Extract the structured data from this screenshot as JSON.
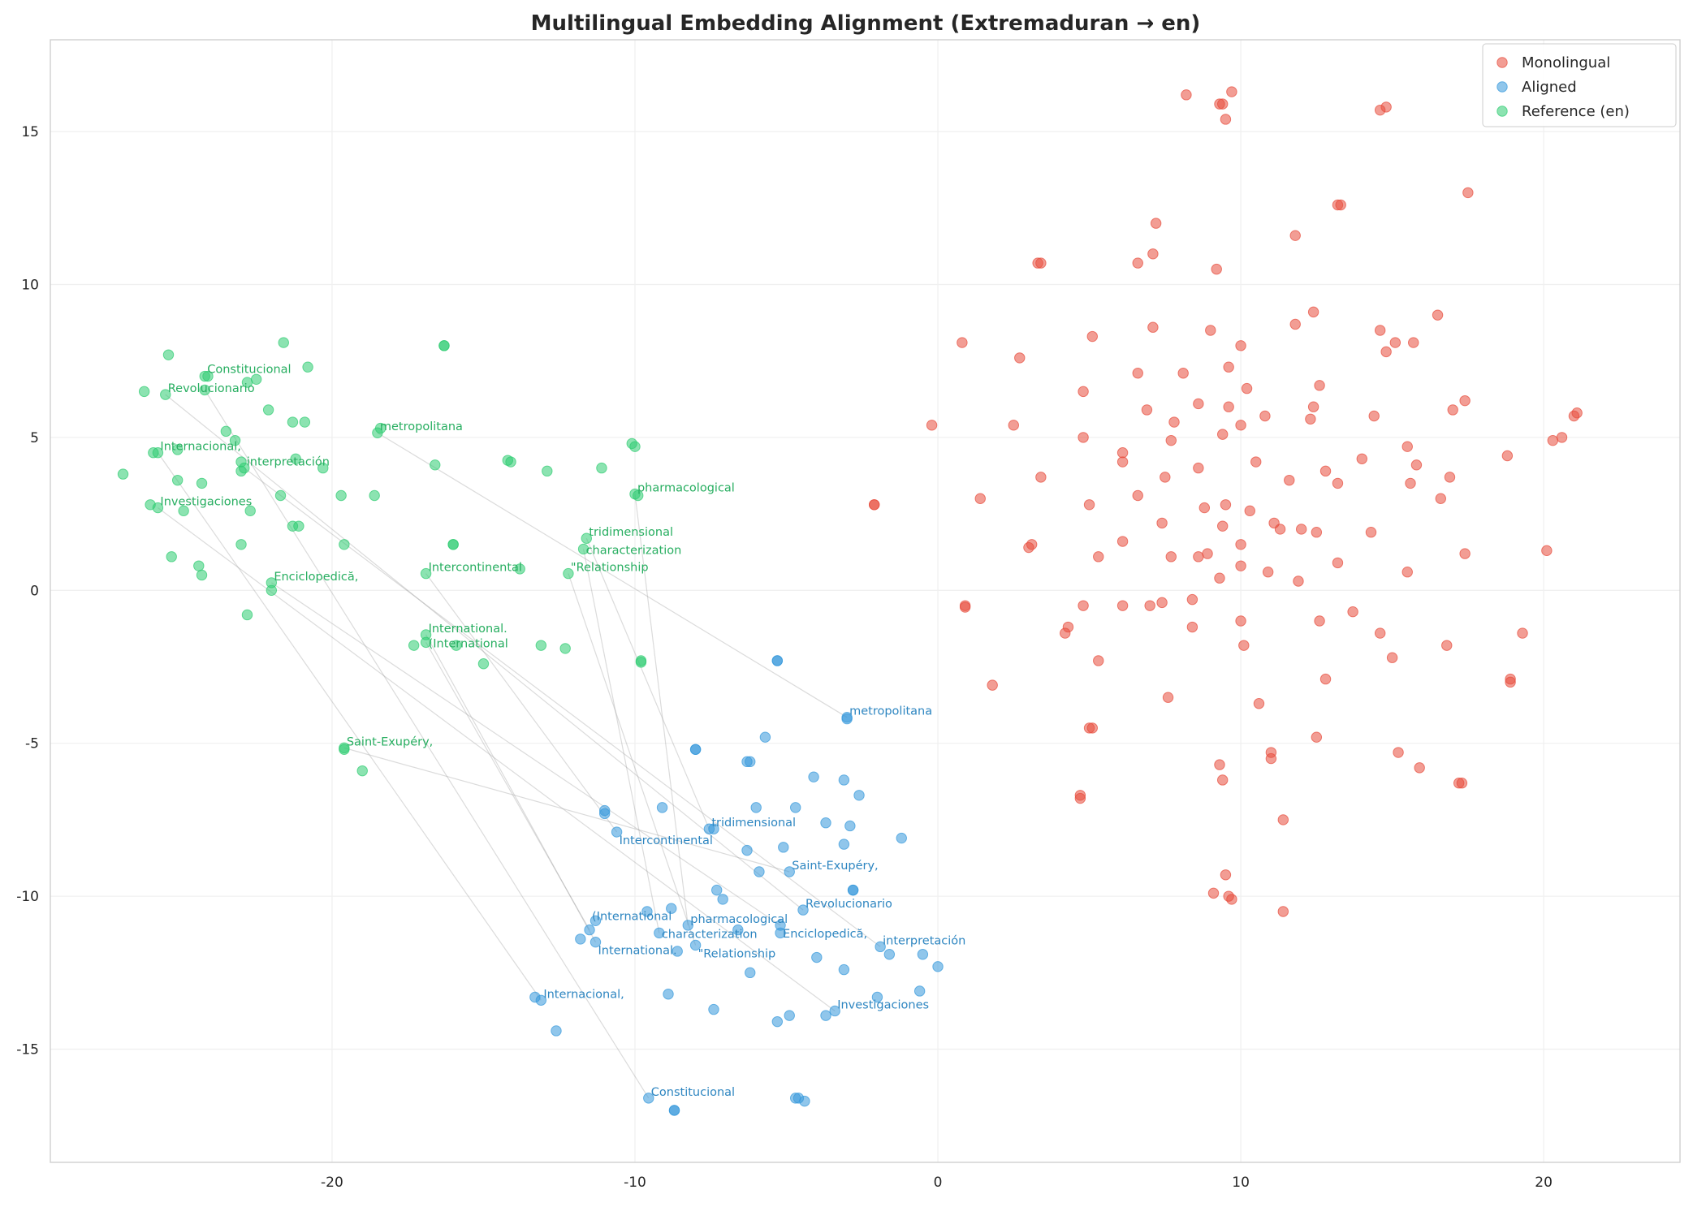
{
  "chart_data": {
    "type": "scatter",
    "title": "Multilingual Embedding Alignment (Extremaduran → en)",
    "xlabel": "",
    "ylabel": "",
    "xlim": [
      -29.3,
      24.5
    ],
    "ylim": [
      -18.7,
      18.0
    ],
    "xticks": [
      -20,
      -10,
      0,
      10,
      20
    ],
    "xtick_labels": [
      "-20",
      "-10",
      "0",
      "10",
      "20"
    ],
    "yticks": [
      15,
      10,
      5,
      0,
      -5,
      -10,
      -15
    ],
    "ytick_labels": [
      "15",
      "10",
      "5",
      "0",
      "-5",
      "-10",
      "-15"
    ],
    "grid": true,
    "legend_position": "top-right",
    "series": [
      {
        "name": "Monolingual",
        "color": "#e74c3c",
        "points": [
          [
            8.2,
            16.2
          ],
          [
            9.3,
            15.9
          ],
          [
            9.7,
            16.3
          ],
          [
            9.4,
            15.9
          ],
          [
            9.5,
            15.4
          ],
          [
            14.6,
            15.7
          ],
          [
            14.8,
            15.8
          ],
          [
            17.5,
            13.0
          ],
          [
            13.2,
            12.6
          ],
          [
            13.3,
            12.6
          ],
          [
            7.2,
            12.0
          ],
          [
            11.8,
            11.6
          ],
          [
            3.3,
            10.7
          ],
          [
            3.4,
            10.7
          ],
          [
            6.6,
            10.7
          ],
          [
            7.1,
            11.0
          ],
          [
            9.2,
            10.5
          ],
          [
            16.5,
            9.0
          ],
          [
            12.4,
            9.1
          ],
          [
            11.8,
            8.7
          ],
          [
            7.1,
            8.6
          ],
          [
            9.0,
            8.5
          ],
          [
            5.1,
            8.3
          ],
          [
            10.0,
            8.0
          ],
          [
            14.6,
            8.5
          ],
          [
            14.8,
            7.8
          ],
          [
            15.1,
            8.1
          ],
          [
            15.7,
            8.1
          ],
          [
            0.8,
            8.1
          ],
          [
            2.7,
            7.6
          ],
          [
            6.6,
            7.1
          ],
          [
            8.1,
            7.1
          ],
          [
            9.6,
            7.3
          ],
          [
            12.6,
            6.7
          ],
          [
            10.2,
            6.6
          ],
          [
            4.8,
            6.5
          ],
          [
            8.6,
            6.1
          ],
          [
            9.6,
            6.0
          ],
          [
            6.9,
            5.9
          ],
          [
            10.8,
            5.7
          ],
          [
            12.4,
            6.0
          ],
          [
            12.3,
            5.6
          ],
          [
            14.4,
            5.7
          ],
          [
            17.0,
            5.9
          ],
          [
            17.4,
            6.2
          ],
          [
            21.1,
            5.8
          ],
          [
            21.0,
            5.7
          ],
          [
            7.8,
            5.5
          ],
          [
            10.0,
            5.4
          ],
          [
            -0.2,
            5.4
          ],
          [
            2.5,
            5.4
          ],
          [
            4.8,
            5.0
          ],
          [
            7.7,
            4.9
          ],
          [
            9.4,
            5.1
          ],
          [
            15.5,
            4.7
          ],
          [
            20.3,
            4.9
          ],
          [
            20.6,
            5.0
          ],
          [
            15.8,
            4.1
          ],
          [
            18.8,
            4.4
          ],
          [
            10.5,
            4.2
          ],
          [
            14.0,
            4.3
          ],
          [
            12.8,
            3.9
          ],
          [
            8.6,
            4.0
          ],
          [
            7.5,
            3.7
          ],
          [
            6.1,
            4.5
          ],
          [
            6.1,
            4.2
          ],
          [
            3.4,
            3.7
          ],
          [
            11.6,
            3.6
          ],
          [
            13.2,
            3.5
          ],
          [
            16.9,
            3.7
          ],
          [
            15.6,
            3.5
          ],
          [
            16.6,
            3.0
          ],
          [
            6.6,
            3.1
          ],
          [
            1.4,
            3.0
          ],
          [
            8.8,
            2.7
          ],
          [
            10.3,
            2.6
          ],
          [
            5.0,
            2.8
          ],
          [
            9.5,
            2.8
          ],
          [
            7.4,
            2.2
          ],
          [
            11.1,
            2.2
          ],
          [
            11.3,
            2.0
          ],
          [
            12.5,
            1.9
          ],
          [
            12.0,
            2.0
          ],
          [
            9.4,
            2.1
          ],
          [
            14.3,
            1.9
          ],
          [
            6.1,
            1.6
          ],
          [
            3.0,
            1.4
          ],
          [
            3.1,
            1.5
          ],
          [
            10.0,
            1.5
          ],
          [
            13.2,
            0.9
          ],
          [
            17.4,
            1.2
          ],
          [
            20.1,
            1.3
          ],
          [
            5.3,
            1.1
          ],
          [
            8.6,
            1.1
          ],
          [
            7.7,
            1.1
          ],
          [
            8.9,
            1.2
          ],
          [
            10.0,
            0.8
          ],
          [
            15.5,
            0.6
          ],
          [
            10.9,
            0.6
          ],
          [
            11.9,
            0.3
          ],
          [
            9.3,
            0.4
          ],
          [
            4.8,
            -0.5
          ],
          [
            6.1,
            -0.5
          ],
          [
            7.4,
            -0.4
          ],
          [
            8.4,
            -0.3
          ],
          [
            7.0,
            -0.5
          ],
          [
            0.9,
            -0.5
          ],
          [
            0.9,
            -0.55
          ],
          [
            10.0,
            -1.0
          ],
          [
            13.7,
            -0.7
          ],
          [
            12.6,
            -1.0
          ],
          [
            4.3,
            -1.2
          ],
          [
            4.2,
            -1.4
          ],
          [
            8.4,
            -1.2
          ],
          [
            14.6,
            -1.4
          ],
          [
            19.3,
            -1.4
          ],
          [
            10.1,
            -1.8
          ],
          [
            16.8,
            -1.8
          ],
          [
            15.0,
            -2.2
          ],
          [
            5.3,
            -2.3
          ],
          [
            12.8,
            -2.9
          ],
          [
            1.8,
            -3.1
          ],
          [
            18.9,
            -2.9
          ],
          [
            18.9,
            -3.0
          ],
          [
            7.6,
            -3.5
          ],
          [
            10.6,
            -3.7
          ],
          [
            5.1,
            -4.5
          ],
          [
            5.0,
            -4.5
          ],
          [
            12.5,
            -4.8
          ],
          [
            15.2,
            -5.3
          ],
          [
            15.9,
            -5.8
          ],
          [
            9.3,
            -5.7
          ],
          [
            11.0,
            -5.5
          ],
          [
            11.0,
            -5.3
          ],
          [
            9.4,
            -6.2
          ],
          [
            17.2,
            -6.3
          ],
          [
            17.3,
            -6.3
          ],
          [
            4.7,
            -6.7
          ],
          [
            4.7,
            -6.8
          ],
          [
            11.4,
            -7.5
          ],
          [
            9.5,
            -9.3
          ],
          [
            9.1,
            -9.9
          ],
          [
            9.6,
            -10.0
          ],
          [
            9.7,
            -10.1
          ],
          [
            11.4,
            -10.5
          ],
          [
            -2.1,
            2.8
          ],
          [
            -2.1,
            2.8
          ]
        ]
      },
      {
        "name": "Aligned",
        "color": "#3498db",
        "points": [
          [
            -5.3,
            -2.3
          ],
          [
            -5.3,
            -2.3
          ],
          [
            -8.0,
            -5.2
          ],
          [
            -8.0,
            -5.2
          ],
          [
            -5.7,
            -4.8
          ],
          [
            -6.2,
            -5.6
          ],
          [
            -6.3,
            -5.6
          ],
          [
            -4.1,
            -6.1
          ],
          [
            -3.1,
            -6.2
          ],
          [
            -2.6,
            -6.7
          ],
          [
            -11.0,
            -7.2
          ],
          [
            -11.0,
            -7.3
          ],
          [
            -9.1,
            -7.1
          ],
          [
            -6.0,
            -7.1
          ],
          [
            -4.7,
            -7.1
          ],
          [
            -3.7,
            -7.6
          ],
          [
            -2.9,
            -7.7
          ],
          [
            -7.4,
            -7.8
          ],
          [
            -5.1,
            -8.4
          ],
          [
            -3.1,
            -8.3
          ],
          [
            -1.2,
            -8.1
          ],
          [
            -6.3,
            -8.5
          ],
          [
            -5.9,
            -9.2
          ],
          [
            -2.8,
            -9.8
          ],
          [
            -2.8,
            -9.8
          ],
          [
            -7.3,
            -9.8
          ],
          [
            -7.1,
            -10.1
          ],
          [
            -9.6,
            -10.5
          ],
          [
            -8.8,
            -10.4
          ],
          [
            -6.6,
            -11.1
          ],
          [
            -5.2,
            -11.2
          ],
          [
            -11.8,
            -11.4
          ],
          [
            -8.6,
            -11.8
          ],
          [
            -6.2,
            -12.5
          ],
          [
            -4.0,
            -12.0
          ],
          [
            -3.1,
            -12.4
          ],
          [
            -0.5,
            -11.9
          ],
          [
            0.0,
            -12.3
          ],
          [
            -1.6,
            -11.9
          ],
          [
            -0.6,
            -13.1
          ],
          [
            -2.0,
            -13.3
          ],
          [
            -5.3,
            -14.1
          ],
          [
            -4.9,
            -13.9
          ],
          [
            -3.7,
            -13.9
          ],
          [
            -13.3,
            -13.3
          ],
          [
            -12.6,
            -14.4
          ],
          [
            -8.9,
            -13.2
          ],
          [
            -7.4,
            -13.7
          ],
          [
            -8.7,
            -17.0
          ],
          [
            -8.7,
            -17.0
          ],
          [
            -4.6,
            -16.6
          ],
          [
            -4.4,
            -16.7
          ],
          [
            -4.7,
            -16.6
          ],
          [
            -3.0,
            -4.2
          ],
          [
            -11.3,
            -10.8
          ]
        ]
      },
      {
        "name": "Reference (en)",
        "color": "#2ecc71",
        "points": [
          [
            -25.4,
            7.7
          ],
          [
            -21.6,
            8.1
          ],
          [
            -20.8,
            7.3
          ],
          [
            -24.1,
            7.0
          ],
          [
            -22.5,
            6.9
          ],
          [
            -24.2,
            7.0
          ],
          [
            -22.8,
            6.8
          ],
          [
            -26.2,
            6.5
          ],
          [
            -22.1,
            5.9
          ],
          [
            -23.5,
            5.2
          ],
          [
            -23.2,
            4.9
          ],
          [
            -21.3,
            5.5
          ],
          [
            -20.9,
            5.5
          ],
          [
            -25.1,
            4.6
          ],
          [
            -21.2,
            4.3
          ],
          [
            -26.9,
            3.8
          ],
          [
            -23.0,
            4.2
          ],
          [
            -23.0,
            3.9
          ],
          [
            -20.3,
            4.0
          ],
          [
            -16.6,
            4.1
          ],
          [
            -16.3,
            8.0
          ],
          [
            -16.3,
            8.0
          ],
          [
            -25.1,
            3.6
          ],
          [
            -24.3,
            3.5
          ],
          [
            -24.9,
            2.6
          ],
          [
            -22.7,
            2.6
          ],
          [
            -26.0,
            2.8
          ],
          [
            -21.7,
            3.1
          ],
          [
            -19.7,
            3.1
          ],
          [
            -18.6,
            3.1
          ],
          [
            -21.3,
            2.1
          ],
          [
            -21.1,
            2.1
          ],
          [
            -23.0,
            1.5
          ],
          [
            -19.6,
            1.5
          ],
          [
            -25.3,
            1.1
          ],
          [
            -24.4,
            0.8
          ],
          [
            -24.3,
            0.5
          ],
          [
            -22.8,
            -0.8
          ],
          [
            -22.0,
            0.0
          ],
          [
            -17.3,
            -1.8
          ],
          [
            -15.9,
            -1.8
          ],
          [
            -15.0,
            -2.4
          ],
          [
            -13.8,
            0.7
          ],
          [
            -14.1,
            4.2
          ],
          [
            -14.2,
            4.25
          ],
          [
            -12.9,
            3.9
          ],
          [
            -11.1,
            4.0
          ],
          [
            -10.1,
            4.8
          ],
          [
            -10.0,
            4.7
          ],
          [
            -9.9,
            3.1
          ],
          [
            -13.1,
            -1.8
          ],
          [
            -12.3,
            -1.9
          ],
          [
            -9.8,
            -2.3
          ],
          [
            -9.8,
            -2.35
          ],
          [
            -16.0,
            1.5
          ],
          [
            -16.0,
            1.5
          ],
          [
            -19.0,
            -5.9
          ],
          [
            -19.6,
            -5.2
          ],
          [
            -18.4,
            5.3
          ],
          [
            -25.9,
            4.5
          ]
        ]
      }
    ],
    "pairs": [
      {
        "label": "Revolucionario",
        "ref": [
          -25.5,
          6.4
        ],
        "aligned": [
          -4.45,
          -10.45
        ]
      },
      {
        "label": "Constitucional",
        "ref": [
          -24.2,
          6.55
        ],
        "aligned": [
          -9.55,
          -16.6
        ]
      },
      {
        "label": "metropolitana",
        "ref": [
          -18.5,
          5.15
        ],
        "aligned": [
          -3.0,
          -4.15
        ]
      },
      {
        "label": "Internacional,",
        "ref": [
          -25.75,
          4.5
        ],
        "aligned": [
          -13.1,
          -13.4
        ]
      },
      {
        "label": "interpretación",
        "ref": [
          -22.9,
          4.0
        ],
        "aligned": [
          -1.9,
          -11.65
        ]
      },
      {
        "label": "Investigaciones",
        "ref": [
          -25.75,
          2.7
        ],
        "aligned": [
          -3.4,
          -13.75
        ]
      },
      {
        "label": "pharmacological",
        "ref": [
          -10.0,
          3.15
        ],
        "aligned": [
          -8.25,
          -10.95
        ]
      },
      {
        "label": "tridimensional",
        "ref": [
          -11.6,
          1.7
        ],
        "aligned": [
          -7.55,
          -7.8
        ]
      },
      {
        "label": "characterization",
        "ref": [
          -11.7,
          1.35
        ],
        "aligned": [
          -9.2,
          -11.2
        ]
      },
      {
        "label": "\"Relationship",
        "ref": [
          -12.2,
          0.55
        ],
        "aligned": [
          -8.0,
          -11.6
        ]
      },
      {
        "label": "Intercontinental",
        "ref": [
          -16.9,
          0.55
        ],
        "aligned": [
          -10.6,
          -7.9
        ]
      },
      {
        "label": "Enciclopedică,",
        "ref": [
          -22.0,
          0.25
        ],
        "aligned": [
          -5.2,
          -10.95
        ]
      },
      {
        "label": "International.",
        "ref": [
          -16.9,
          -1.45
        ],
        "aligned": [
          -11.3,
          -11.5
        ]
      },
      {
        "label": "(International",
        "ref": [
          -16.9,
          -1.7
        ],
        "aligned": [
          -11.5,
          -11.1
        ]
      },
      {
        "label": "Saint-Exupéry,",
        "ref": [
          -19.6,
          -5.15
        ],
        "aligned": [
          -4.9,
          -9.2
        ]
      }
    ]
  }
}
